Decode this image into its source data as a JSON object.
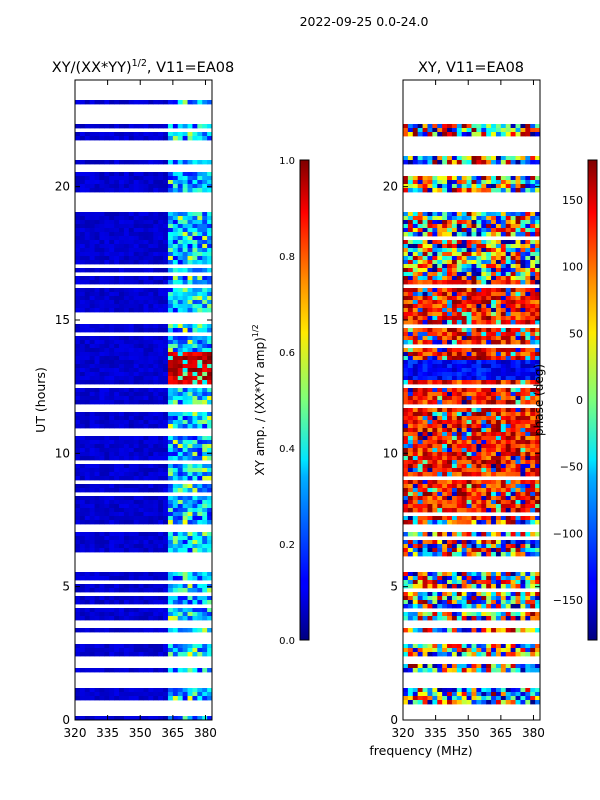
{
  "figure": {
    "suptitle": "2022-09-25 0.0-24.0",
    "xlabel": "frequency (MHz)"
  },
  "chart_data": [
    {
      "type": "heatmap",
      "title": "XY/(XX*YY)^1/2, V11=EA08",
      "title_main": "XY/(XX*YY)",
      "title_sup": "1/2",
      "title_tail": ", V11=EA08",
      "ylabel": "UT (hours)",
      "xlim": [
        320,
        383
      ],
      "ylim": [
        0,
        24
      ],
      "xticks": [
        "320",
        "335",
        "350",
        "365",
        "380"
      ],
      "yticks": [
        "0",
        "5",
        "10",
        "15",
        "20"
      ],
      "colorbar": {
        "label_main": "XY amp. / (XX*YY amp)",
        "label_sup": "1/2",
        "range": [
          0.0,
          1.0
        ],
        "ticks": [
          "0.0",
          "0.2",
          "0.4",
          "0.6",
          "0.8",
          "1.0"
        ]
      },
      "description_values": {
        "background_level": 0.05,
        "high_band_mhz": [
          362,
          383
        ],
        "high_band_level": 0.3,
        "peak_hours": [
          12.4,
          13.8
        ],
        "peak_level": 0.85
      }
    },
    {
      "type": "heatmap",
      "title": "XY, V11=EA08",
      "ylabel": "",
      "xlim": [
        320,
        383
      ],
      "ylim": [
        0,
        24
      ],
      "xticks": [
        "320",
        "335",
        "350",
        "365",
        "380"
      ],
      "yticks": [
        "0",
        "5",
        "10",
        "15",
        "20"
      ],
      "colorbar": {
        "label": "phase (deg)",
        "range": [
          -180,
          180
        ],
        "ticks": [
          "-150",
          "-100",
          "-50",
          "0",
          "50",
          "100",
          "150"
        ]
      }
    }
  ],
  "colors": {
    "jet": [
      "#00007f",
      "#0000ff",
      "#007fff",
      "#00ffff",
      "#7fff7f",
      "#ffff00",
      "#ff7f00",
      "#ff0000",
      "#7f0000"
    ]
  }
}
